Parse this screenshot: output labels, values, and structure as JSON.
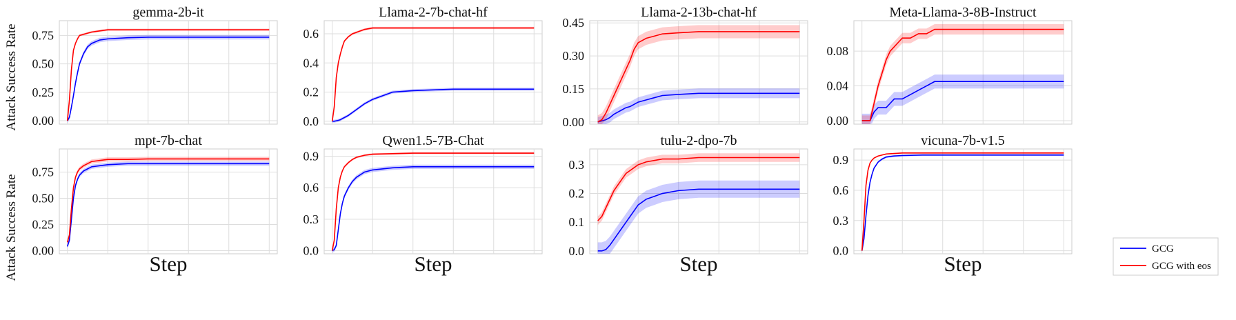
{
  "figure": {
    "ylabel": "Attack Success Rate",
    "xlabel": "Step",
    "legend": {
      "placement": "bottom-right",
      "entries": [
        {
          "label": "GCG",
          "color": "#0000ff"
        },
        {
          "label": "GCG with eos",
          "color": "#ff0000"
        }
      ]
    }
  },
  "chart_data": [
    {
      "type": "line",
      "title": "gemma-2b-it",
      "xlabel": "Step",
      "ylabel": "Attack Success Rate",
      "x": [
        0,
        5,
        10,
        15,
        20,
        25,
        30,
        40,
        50,
        60,
        80,
        100,
        150,
        200,
        250,
        300,
        350,
        400,
        500
      ],
      "ylim": [
        -0.03,
        0.88
      ],
      "yticks": [
        "0.00",
        "0.25",
        "0.50",
        "0.75"
      ],
      "yticks_values": [
        0,
        0.25,
        0.5,
        0.75
      ],
      "grid": true,
      "series": [
        {
          "name": "GCG",
          "color": "#0000ff",
          "values": [
            0.0,
            0.03,
            0.12,
            0.22,
            0.33,
            0.42,
            0.5,
            0.59,
            0.65,
            0.68,
            0.71,
            0.72,
            0.73,
            0.735,
            0.735,
            0.735,
            0.735,
            0.735,
            0.735
          ],
          "band": 0.02
        },
        {
          "name": "GCG with eos",
          "color": "#ff0000",
          "values": [
            0.0,
            0.18,
            0.45,
            0.62,
            0.68,
            0.72,
            0.75,
            0.76,
            0.77,
            0.78,
            0.79,
            0.8,
            0.8,
            0.8,
            0.8,
            0.8,
            0.8,
            0.8,
            0.8
          ],
          "band": 0.01
        }
      ]
    },
    {
      "type": "line",
      "title": "Llama-2-7b-chat-hf",
      "xlabel": "Step",
      "ylabel": "Attack Success Rate",
      "x": [
        0,
        5,
        10,
        15,
        20,
        25,
        30,
        40,
        50,
        60,
        80,
        100,
        150,
        200,
        250,
        300,
        350,
        400,
        500
      ],
      "ylim": [
        -0.02,
        0.69
      ],
      "yticks": [
        "0.0",
        "0.2",
        "0.4",
        "0.6"
      ],
      "yticks_values": [
        0,
        0.2,
        0.4,
        0.6
      ],
      "grid": true,
      "series": [
        {
          "name": "GCG",
          "color": "#0000ff",
          "values": [
            0.0,
            0.0,
            0.003,
            0.006,
            0.01,
            0.018,
            0.025,
            0.04,
            0.06,
            0.08,
            0.12,
            0.15,
            0.2,
            0.21,
            0.215,
            0.22,
            0.22,
            0.22,
            0.22
          ],
          "band": 0.01
        },
        {
          "name": "GCG with eos",
          "color": "#ff0000",
          "values": [
            0.0,
            0.1,
            0.3,
            0.4,
            0.46,
            0.51,
            0.55,
            0.58,
            0.6,
            0.61,
            0.63,
            0.64,
            0.64,
            0.64,
            0.64,
            0.64,
            0.64,
            0.64,
            0.64
          ],
          "band": 0.008
        }
      ]
    },
    {
      "type": "line",
      "title": "Llama-2-13b-chat-hf",
      "xlabel": "Step",
      "ylabel": "Attack Success Rate",
      "x": [
        0,
        10,
        20,
        30,
        40,
        50,
        60,
        70,
        80,
        90,
        100,
        120,
        140,
        160,
        200,
        250,
        300,
        400,
        500
      ],
      "ylim": [
        -0.01,
        0.46
      ],
      "yticks": [
        "0.00",
        "0.15",
        "0.30",
        "0.45"
      ],
      "yticks_values": [
        0,
        0.15,
        0.3,
        0.45
      ],
      "grid": true,
      "series": [
        {
          "name": "GCG",
          "color": "#0000ff",
          "values": [
            0.0,
            0.005,
            0.01,
            0.02,
            0.035,
            0.045,
            0.055,
            0.065,
            0.07,
            0.08,
            0.09,
            0.1,
            0.11,
            0.12,
            0.125,
            0.13,
            0.13,
            0.13,
            0.13
          ],
          "band": 0.022
        },
        {
          "name": "GCG with eos",
          "color": "#ff0000",
          "values": [
            0.0,
            0.01,
            0.04,
            0.08,
            0.12,
            0.16,
            0.2,
            0.24,
            0.28,
            0.33,
            0.36,
            0.38,
            0.39,
            0.4,
            0.405,
            0.41,
            0.41,
            0.41,
            0.41
          ],
          "band": 0.03
        }
      ]
    },
    {
      "type": "line",
      "title": "Meta-Llama-3-8B-Instruct",
      "xlabel": "Step",
      "ylabel": "Attack Success Rate",
      "x": [
        0,
        10,
        20,
        25,
        30,
        40,
        50,
        60,
        70,
        80,
        90,
        100,
        120,
        140,
        160,
        180,
        200,
        300,
        500
      ],
      "ylim": [
        -0.004,
        0.115
      ],
      "yticks": [
        "0.00",
        "0.04",
        "0.08"
      ],
      "yticks_values": [
        0,
        0.04,
        0.08
      ],
      "grid": true,
      "series": [
        {
          "name": "GCG",
          "color": "#0000ff",
          "values": [
            0.0,
            0.0,
            0.0,
            0.005,
            0.01,
            0.015,
            0.015,
            0.015,
            0.02,
            0.025,
            0.025,
            0.025,
            0.03,
            0.035,
            0.04,
            0.045,
            0.045,
            0.045,
            0.045
          ],
          "band": 0.008
        },
        {
          "name": "GCG with eos",
          "color": "#ff0000",
          "values": [
            0.0,
            0.0,
            0.0,
            0.01,
            0.02,
            0.04,
            0.055,
            0.07,
            0.08,
            0.085,
            0.09,
            0.095,
            0.095,
            0.1,
            0.1,
            0.105,
            0.105,
            0.105,
            0.105
          ],
          "band": 0.006
        }
      ]
    },
    {
      "type": "line",
      "title": "mpt-7b-chat",
      "xlabel": "Step",
      "ylabel": "Attack Success Rate",
      "x": [
        0,
        5,
        10,
        15,
        20,
        25,
        30,
        40,
        50,
        60,
        80,
        100,
        150,
        200,
        250,
        300,
        350,
        400,
        500
      ],
      "ylim": [
        -0.03,
        0.97
      ],
      "yticks": [
        "0.00",
        "0.25",
        "0.50",
        "0.75"
      ],
      "yticks_values": [
        0,
        0.25,
        0.5,
        0.75
      ],
      "grid": true,
      "series": [
        {
          "name": "GCG",
          "color": "#0000ff",
          "values": [
            0.04,
            0.1,
            0.3,
            0.5,
            0.62,
            0.68,
            0.72,
            0.76,
            0.78,
            0.8,
            0.81,
            0.82,
            0.83,
            0.83,
            0.83,
            0.83,
            0.83,
            0.83,
            0.83
          ],
          "band": 0.02
        },
        {
          "name": "GCG with eos",
          "color": "#ff0000",
          "values": [
            0.08,
            0.15,
            0.4,
            0.6,
            0.7,
            0.75,
            0.78,
            0.81,
            0.83,
            0.85,
            0.86,
            0.87,
            0.87,
            0.875,
            0.875,
            0.875,
            0.875,
            0.875,
            0.875
          ],
          "band": 0.02
        }
      ]
    },
    {
      "type": "line",
      "title": "Qwen1.5-7B-Chat",
      "xlabel": "Step",
      "ylabel": "Attack Success Rate",
      "x": [
        0,
        5,
        10,
        15,
        20,
        25,
        30,
        40,
        50,
        60,
        80,
        100,
        150,
        200,
        250,
        300,
        350,
        400,
        500
      ],
      "ylim": [
        -0.03,
        0.97
      ],
      "yticks": [
        "0.0",
        "0.3",
        "0.6",
        "0.9"
      ],
      "yticks_values": [
        0,
        0.3,
        0.6,
        0.9
      ],
      "grid": true,
      "series": [
        {
          "name": "GCG",
          "color": "#0000ff",
          "values": [
            0.0,
            0.01,
            0.05,
            0.2,
            0.35,
            0.45,
            0.52,
            0.6,
            0.66,
            0.7,
            0.75,
            0.77,
            0.79,
            0.8,
            0.8,
            0.8,
            0.8,
            0.8,
            0.8
          ],
          "band": 0.02
        },
        {
          "name": "GCG with eos",
          "color": "#ff0000",
          "values": [
            0.0,
            0.1,
            0.4,
            0.6,
            0.7,
            0.76,
            0.8,
            0.84,
            0.87,
            0.89,
            0.91,
            0.92,
            0.925,
            0.93,
            0.93,
            0.93,
            0.93,
            0.93,
            0.93
          ],
          "band": 0.01
        }
      ]
    },
    {
      "type": "line",
      "title": "tulu-2-dpo-7b",
      "xlabel": "Step",
      "ylabel": "Attack Success Rate",
      "x": [
        0,
        10,
        20,
        30,
        40,
        50,
        60,
        70,
        80,
        90,
        100,
        120,
        140,
        160,
        200,
        250,
        300,
        400,
        500
      ],
      "ylim": [
        -0.01,
        0.355
      ],
      "yticks": [
        "0.0",
        "0.1",
        "0.2",
        "0.3"
      ],
      "yticks_values": [
        0,
        0.1,
        0.2,
        0.3
      ],
      "grid": true,
      "series": [
        {
          "name": "GCG",
          "color": "#0000ff",
          "values": [
            0.0,
            0.0,
            0.005,
            0.02,
            0.04,
            0.06,
            0.08,
            0.1,
            0.12,
            0.14,
            0.16,
            0.18,
            0.19,
            0.2,
            0.21,
            0.215,
            0.215,
            0.215,
            0.215
          ],
          "band": 0.03
        },
        {
          "name": "GCG with eos",
          "color": "#ff0000",
          "values": [
            0.105,
            0.12,
            0.15,
            0.18,
            0.21,
            0.23,
            0.25,
            0.27,
            0.28,
            0.29,
            0.3,
            0.31,
            0.315,
            0.32,
            0.32,
            0.325,
            0.325,
            0.325,
            0.325
          ],
          "band": 0.015
        }
      ]
    },
    {
      "type": "line",
      "title": "vicuna-7b-v1.5",
      "xlabel": "Step",
      "ylabel": "Attack Success Rate",
      "x": [
        0,
        5,
        10,
        15,
        20,
        25,
        30,
        40,
        50,
        60,
        80,
        100,
        150,
        200,
        250,
        300,
        350,
        400,
        500
      ],
      "ylim": [
        -0.03,
        1.01
      ],
      "yticks": [
        "0.0",
        "0.3",
        "0.6",
        "0.9"
      ],
      "yticks_values": [
        0,
        0.3,
        0.6,
        0.9
      ],
      "grid": true,
      "series": [
        {
          "name": "GCG",
          "color": "#0000ff",
          "values": [
            0.0,
            0.12,
            0.35,
            0.55,
            0.68,
            0.76,
            0.82,
            0.88,
            0.91,
            0.93,
            0.94,
            0.945,
            0.95,
            0.95,
            0.95,
            0.95,
            0.95,
            0.95,
            0.95
          ],
          "band": 0.01
        },
        {
          "name": "GCG with eos",
          "color": "#ff0000",
          "values": [
            0.0,
            0.3,
            0.65,
            0.8,
            0.87,
            0.9,
            0.92,
            0.94,
            0.95,
            0.96,
            0.965,
            0.97,
            0.97,
            0.97,
            0.97,
            0.97,
            0.97,
            0.97,
            0.97
          ],
          "band": 0.006
        }
      ]
    }
  ]
}
